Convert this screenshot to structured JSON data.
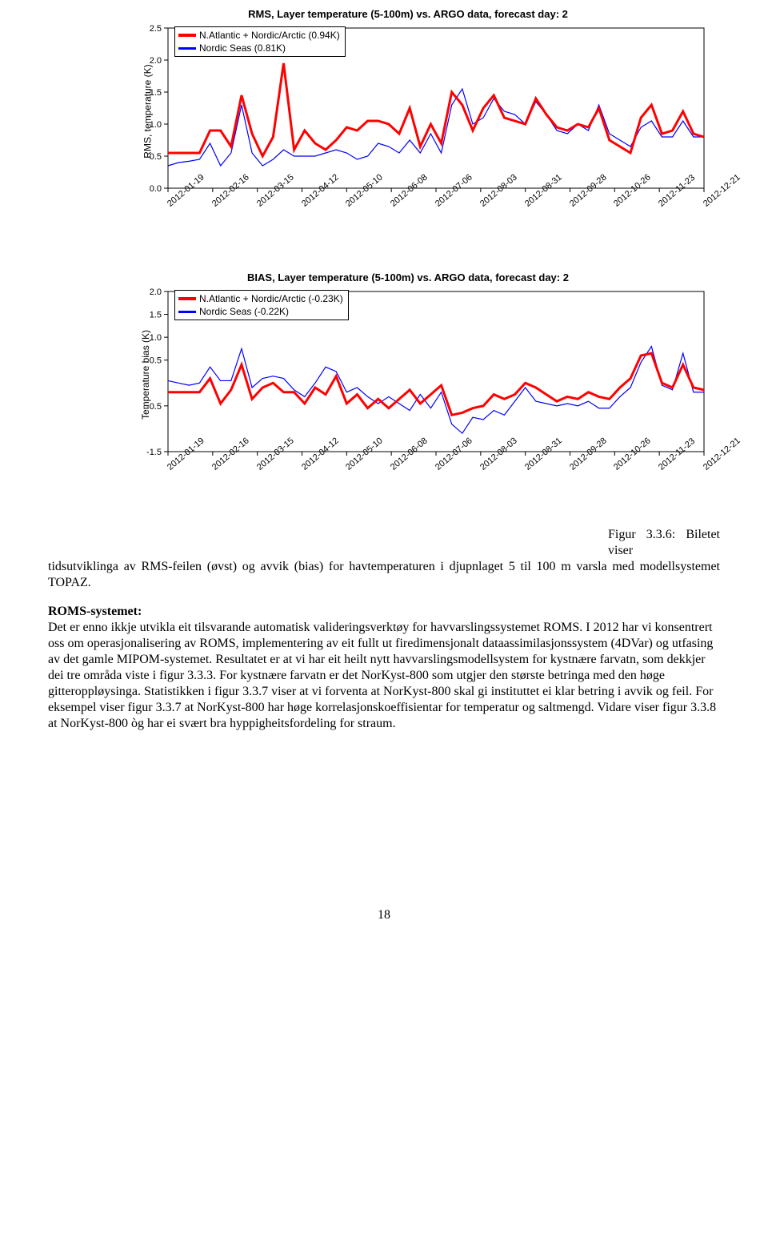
{
  "chart1": {
    "title": "RMS, Layer temperature (5-100m) vs. ARGO data, forecast day: 2",
    "ylabel": "RMS, temperature (K)",
    "ylim": [
      0.0,
      2.5
    ],
    "yticks": [
      0.0,
      0.5,
      1.0,
      1.5,
      2.0,
      2.5
    ],
    "bg": "#ffffff",
    "axis_color": "#000000",
    "line1_color": "#ff0000",
    "line2_color": "#0000ff",
    "line1_width": 3,
    "line2_width": 1.2,
    "legend": {
      "l1": "N.Atlantic + Nordic/Arctic (0.94K)",
      "l2": "Nordic Seas (0.81K)"
    },
    "xticks": [
      "2012-01-19",
      "2012-02-16",
      "2012-03-15",
      "2012-04-12",
      "2012-05-10",
      "2012-06-08",
      "2012-07-06",
      "2012-08-03",
      "2012-08-31",
      "2012-09-28",
      "2012-10-26",
      "2012-11-23",
      "2012-12-21"
    ],
    "n_points": 52,
    "s1": [
      0.55,
      0.55,
      0.55,
      0.55,
      0.9,
      0.9,
      0.65,
      1.45,
      0.85,
      0.5,
      0.8,
      1.95,
      0.6,
      0.9,
      0.7,
      0.6,
      0.75,
      0.95,
      0.9,
      1.05,
      1.05,
      1.0,
      0.85,
      1.25,
      0.65,
      1.0,
      0.7,
      1.5,
      1.3,
      0.9,
      1.25,
      1.45,
      1.1,
      1.05,
      1.0,
      1.4,
      1.15,
      0.95,
      0.9,
      1.0,
      0.95,
      1.25,
      0.75,
      0.65,
      0.55,
      1.1,
      1.3,
      0.85,
      0.9,
      1.2,
      0.85,
      0.8
    ],
    "s2": [
      0.35,
      0.4,
      0.42,
      0.45,
      0.7,
      0.35,
      0.55,
      1.3,
      0.55,
      0.35,
      0.45,
      0.6,
      0.5,
      0.5,
      0.5,
      0.55,
      0.6,
      0.55,
      0.45,
      0.5,
      0.7,
      0.65,
      0.55,
      0.75,
      0.55,
      0.85,
      0.55,
      1.3,
      1.55,
      1.0,
      1.1,
      1.4,
      1.2,
      1.15,
      1.0,
      1.35,
      1.15,
      0.9,
      0.85,
      1.0,
      0.9,
      1.3,
      0.85,
      0.75,
      0.65,
      0.95,
      1.05,
      0.8,
      0.8,
      1.05,
      0.8,
      0.8
    ]
  },
  "chart2": {
    "title": "BIAS, Layer temperature (5-100m) vs. ARGO data, forecast day: 2",
    "ylabel": "Temperature bias (K)",
    "ylim": [
      -1.5,
      2.0
    ],
    "yticks": [
      -1.5,
      -0.5,
      0.5,
      1.0,
      1.5,
      2.0
    ],
    "bg": "#ffffff",
    "axis_color": "#000000",
    "line1_color": "#ff0000",
    "line2_color": "#0000ff",
    "line1_width": 3,
    "line2_width": 1.2,
    "legend": {
      "l1": "N.Atlantic + Nordic/Arctic (-0.23K)",
      "l2": "Nordic Seas (-0.22K)"
    },
    "xticks": [
      "2012-01-19",
      "2012-02-16",
      "2012-03-15",
      "2012-04-12",
      "2012-05-10",
      "2012-06-08",
      "2012-07-06",
      "2012-08-03",
      "2012-08-31",
      "2012-09-28",
      "2012-10-26",
      "2012-11-23",
      "2012-12-21"
    ],
    "n_points": 52,
    "s1": [
      -0.2,
      -0.2,
      -0.2,
      -0.2,
      0.1,
      -0.45,
      -0.15,
      0.4,
      -0.35,
      -0.1,
      0.0,
      -0.2,
      -0.2,
      -0.45,
      -0.1,
      -0.25,
      0.15,
      -0.45,
      -0.25,
      -0.55,
      -0.35,
      -0.55,
      -0.35,
      -0.15,
      -0.45,
      -0.25,
      -0.05,
      -0.7,
      -0.65,
      -0.55,
      -0.5,
      -0.25,
      -0.35,
      -0.25,
      0.0,
      -0.1,
      -0.25,
      -0.4,
      -0.3,
      -0.35,
      -0.2,
      -0.3,
      -0.35,
      -0.1,
      0.1,
      0.6,
      0.65,
      0.0,
      -0.1,
      0.4,
      -0.1,
      -0.15
    ],
    "s2": [
      0.05,
      0.0,
      -0.05,
      0.0,
      0.35,
      0.05,
      0.05,
      0.75,
      -0.1,
      0.1,
      0.15,
      0.1,
      -0.15,
      -0.3,
      0.0,
      0.35,
      0.25,
      -0.2,
      -0.1,
      -0.3,
      -0.45,
      -0.3,
      -0.45,
      -0.6,
      -0.25,
      -0.55,
      -0.2,
      -0.9,
      -1.1,
      -0.75,
      -0.8,
      -0.6,
      -0.7,
      -0.4,
      -0.1,
      -0.4,
      -0.45,
      -0.5,
      -0.45,
      -0.5,
      -0.4,
      -0.55,
      -0.55,
      -0.3,
      -0.1,
      0.45,
      0.8,
      -0.05,
      -0.15,
      0.65,
      -0.2,
      -0.2
    ]
  },
  "caption": {
    "fig_label": "Figur 3.3.6",
    "shows": "Biletet viser",
    "rest": "tidsutviklinga av RMS-feilen (øvst) og avvik (bias) for havtemperaturen i djupnlaget 5 til 100 m varsla med modellsystemet TOPAZ."
  },
  "body": {
    "heading": "ROMS-systemet:",
    "text": "Det er enno ikkje utvikla eit tilsvarande automatisk valideringsverktøy for havvarslingssystemet ROMS. I 2012 har vi konsentrert oss om operasjonalisering av ROMS, implementering av eit fullt ut firedimensjonalt dataassimilasjonssystem (4DVar) og utfasing av det gamle MIPOM-systemet. Resultatet er at vi har eit heilt nytt havvarslingsmodellsystem for kystnære farvatn, som dekkjer dei tre områda viste i figur 3.3.3. For kystnære farvatn er det NorKyst-800 som utgjer den største betringa med den høge gitteroppløysinga. Statistikken i figur 3.3.7 viser at vi forventa at NorKyst-800 skal gi instituttet ei klar betring i avvik og feil. For eksempel viser figur 3.3.7 at NorKyst-800 har høge korrelasjonskoeffisientar for temperatur og saltmengd. Vidare viser figur 3.3.8 at NorKyst-800 òg har ei svært bra hyppigheitsfordeling for straum."
  },
  "page_number": "18"
}
